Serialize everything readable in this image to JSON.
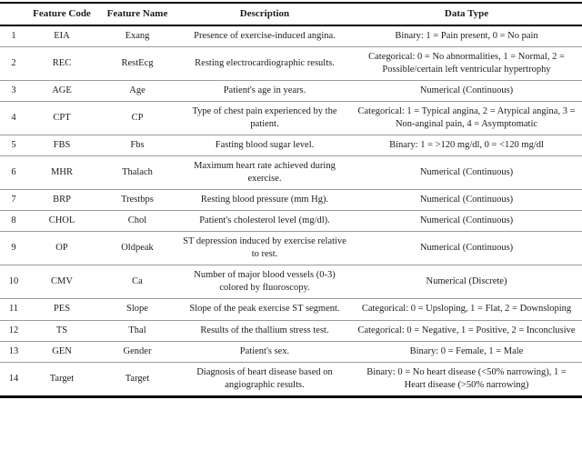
{
  "table": {
    "title_semantic": "Heart disease dataset feature dictionary",
    "headers": {
      "code": "Feature Code",
      "name": "Feature Name",
      "description": "Description",
      "data_type": "Data Type"
    },
    "rows": [
      {
        "num": "1",
        "code": "EIA",
        "name": "Exang",
        "description": "Presence of exercise-induced angina.",
        "data_type": "Binary: 1 = Pain present, 0 = No pain"
      },
      {
        "num": "2",
        "code": "REC",
        "name": "RestEcg",
        "description": "Resting electrocardiographic results.",
        "data_type": "Categorical: 0 = No abnormalities, 1 = Normal, 2 = Possible/certain left ventricular hypertrophy"
      },
      {
        "num": "3",
        "code": "AGE",
        "name": "Age",
        "description": "Patient's age in years.",
        "data_type": "Numerical (Continuous)"
      },
      {
        "num": "4",
        "code": "CPT",
        "name": "CP",
        "description": "Type of chest pain experienced by the patient.",
        "data_type": "Categorical: 1 = Typical angina, 2 = Atypical angina, 3 = Non-anginal pain, 4 = Asymptomatic"
      },
      {
        "num": "5",
        "code": "FBS",
        "name": "Fbs",
        "description": "Fasting blood sugar level.",
        "data_type": "Binary: 1 = >120 mg/dl, 0 = <120 mg/dl"
      },
      {
        "num": "6",
        "code": "MHR",
        "name": "Thalach",
        "description": "Maximum heart rate achieved during exercise.",
        "data_type": "Numerical (Continuous)"
      },
      {
        "num": "7",
        "code": "BRP",
        "name": "Trestbps",
        "description": "Resting blood pressure (mm Hg).",
        "data_type": "Numerical (Continuous)"
      },
      {
        "num": "8",
        "code": "CHOL",
        "name": "Chol",
        "description": "Patient's cholesterol level (mg/dl).",
        "data_type": "Numerical (Continuous)"
      },
      {
        "num": "9",
        "code": "OP",
        "name": "Oldpeak",
        "description": "ST depression induced by exercise relative to rest.",
        "data_type": "Numerical (Continuous)"
      },
      {
        "num": "10",
        "code": "CMV",
        "name": "Ca",
        "description": "Number of major blood vessels (0-3) colored by fluoroscopy.",
        "data_type": "Numerical (Discrete)"
      },
      {
        "num": "11",
        "code": "PES",
        "name": "Slope",
        "description": "Slope of the peak exercise ST segment.",
        "data_type": "Categorical: 0 = Upsloping, 1 = Flat, 2 = Downsloping"
      },
      {
        "num": "12",
        "code": "TS",
        "name": "Thal",
        "description": "Results of the thallium stress test.",
        "data_type": "Categorical: 0 = Negative, 1 = Positive, 2 = Inconclusive"
      },
      {
        "num": "13",
        "code": "GEN",
        "name": "Gender",
        "description": "Patient's sex.",
        "data_type": "Binary: 0 = Female, 1 = Male"
      },
      {
        "num": "14",
        "code": "Target",
        "name": "Target",
        "description": "Diagnosis of heart disease based on angiographic results.",
        "data_type": "Binary: 0 = No heart disease (<50% narrowing), 1 = Heart disease (>50% narrowing)"
      }
    ]
  }
}
